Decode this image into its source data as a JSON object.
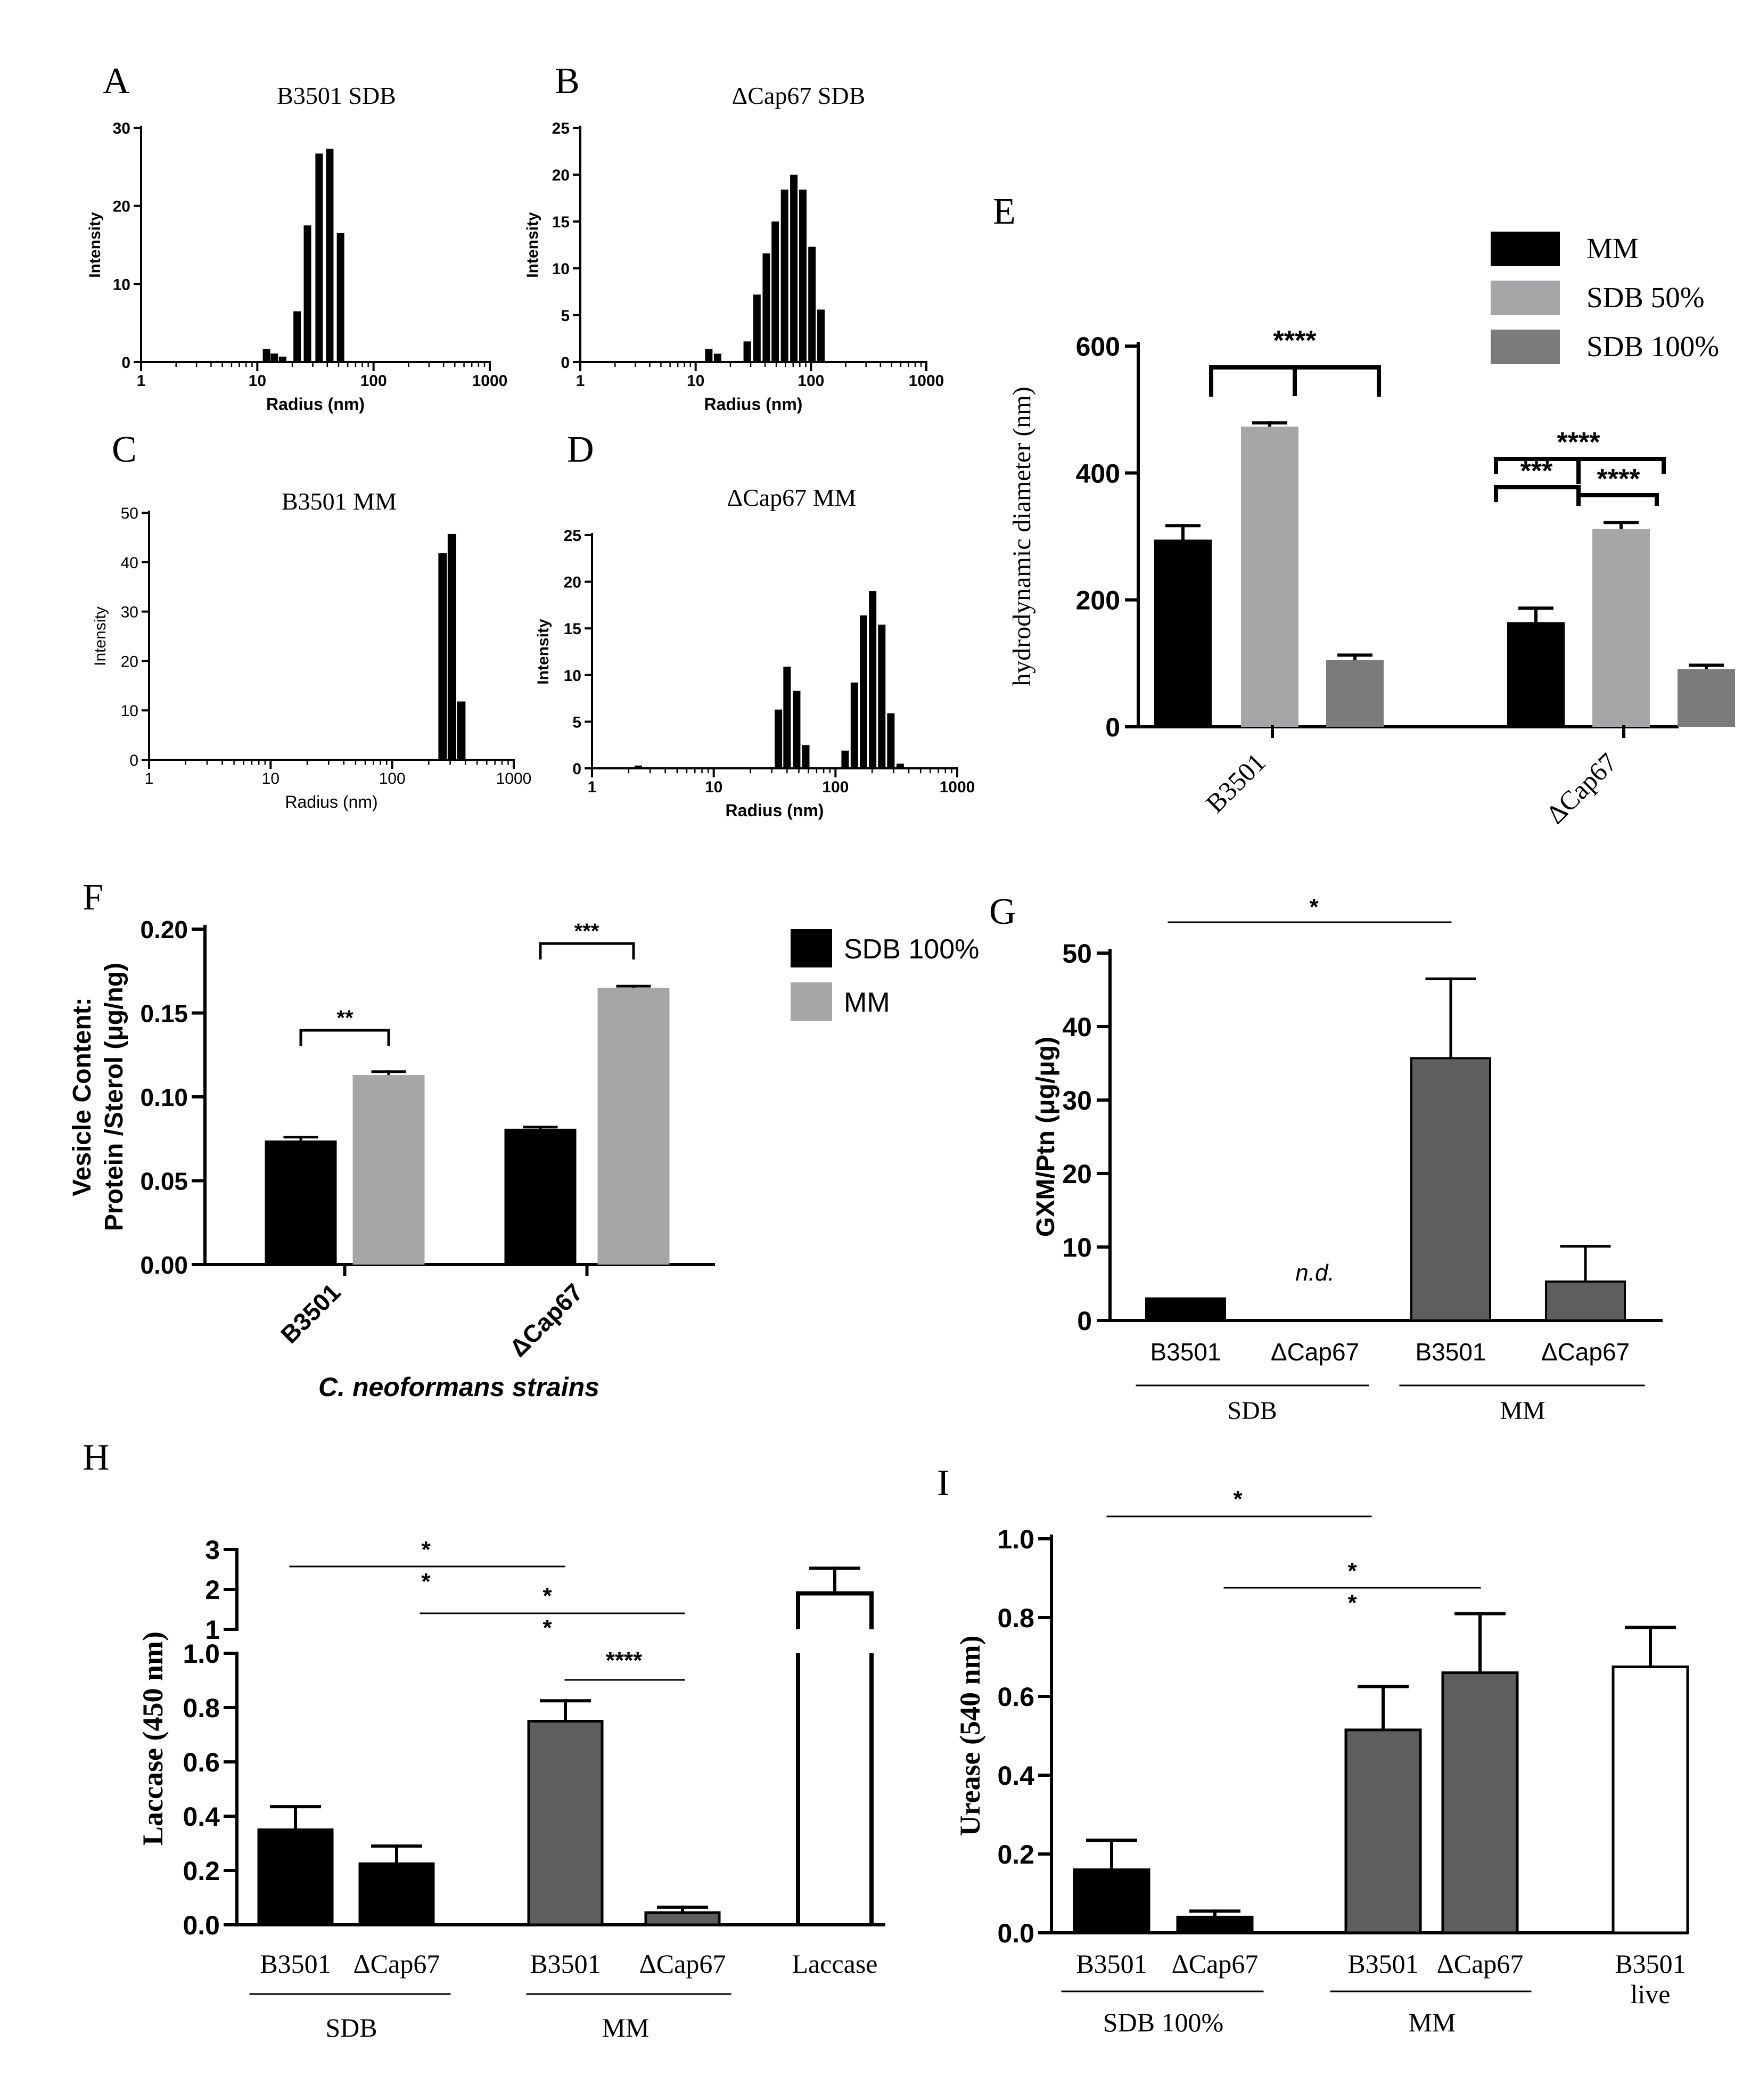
{
  "figure": {
    "panel_letters": [
      "A",
      "B",
      "C",
      "D",
      "E",
      "F",
      "G",
      "H",
      "I"
    ]
  },
  "colors": {
    "black": "#000000",
    "light_grey": "#a6a6a8",
    "dark_grey": "#7b7b7b",
    "mid_grey": "#5e5e5e",
    "white": "#ffffff"
  },
  "chart_data": [
    {
      "panel": "A",
      "type": "bar",
      "title": "B3501 SDB",
      "xlabel": "Radius (nm)",
      "ylabel": "Intensity",
      "xscale": "log",
      "xlim": [
        1,
        1000
      ],
      "ylim": [
        0,
        30
      ],
      "xticks": [
        1,
        10,
        100,
        1000
      ],
      "xtick_labels": [
        "1",
        "10",
        "100",
        "1000"
      ],
      "yticks": [
        0,
        10,
        20,
        30
      ],
      "ytick_labels": [
        "0",
        "10",
        "20",
        "30"
      ],
      "bars": [
        {
          "x": 12,
          "y": 1.7
        },
        {
          "x": 14,
          "y": 1.1
        },
        {
          "x": 16.5,
          "y": 0.7
        },
        {
          "x": 22,
          "y": 6.5
        },
        {
          "x": 27,
          "y": 17.5
        },
        {
          "x": 34,
          "y": 26.7
        },
        {
          "x": 42,
          "y": 27.3
        },
        {
          "x": 52,
          "y": 16.5
        }
      ]
    },
    {
      "panel": "B",
      "type": "bar",
      "title": "ΔCap67 SDB",
      "xlabel": "Radius (nm)",
      "ylabel": "Intensity",
      "xscale": "log",
      "xlim": [
        1,
        1000
      ],
      "ylim": [
        0,
        25
      ],
      "xticks": [
        1,
        10,
        100,
        1000
      ],
      "xtick_labels": [
        "1",
        "10",
        "100",
        "1000"
      ],
      "yticks": [
        0,
        5,
        10,
        15,
        20,
        25
      ],
      "ytick_labels": [
        "0",
        "5",
        "10",
        "15",
        "20",
        "25"
      ],
      "bars": [
        {
          "x": 13,
          "y": 1.4
        },
        {
          "x": 15.5,
          "y": 0.9
        },
        {
          "x": 28,
          "y": 2.2
        },
        {
          "x": 34,
          "y": 7.2
        },
        {
          "x": 41,
          "y": 11.6
        },
        {
          "x": 49,
          "y": 15.0
        },
        {
          "x": 59,
          "y": 18.4
        },
        {
          "x": 71,
          "y": 20.0
        },
        {
          "x": 85,
          "y": 18.4
        },
        {
          "x": 102,
          "y": 12.3
        },
        {
          "x": 122,
          "y": 5.6
        }
      ]
    },
    {
      "panel": "C",
      "type": "bar",
      "title": "B3501 MM",
      "xlabel": "Radius (nm)",
      "ylabel": "Intensity",
      "xscale": "log",
      "xlim": [
        1,
        1000
      ],
      "ylim": [
        0,
        50
      ],
      "xticks": [
        1,
        10,
        100,
        1000
      ],
      "xtick_labels": [
        "1",
        "10",
        "100",
        "1000"
      ],
      "yticks": [
        0,
        10,
        20,
        30,
        40,
        50
      ],
      "ytick_labels": [
        "0",
        "10",
        "20",
        "30",
        "40",
        "50"
      ],
      "bars": [
        {
          "x": 260,
          "y": 41.8
        },
        {
          "x": 310,
          "y": 45.7
        },
        {
          "x": 370,
          "y": 11.8
        }
      ]
    },
    {
      "panel": "D",
      "type": "bar",
      "title": "ΔCap67 MM",
      "xlabel": "Radius (nm)",
      "ylabel": "Intensity",
      "xscale": "log",
      "xlim": [
        1,
        1000
      ],
      "ylim": [
        0,
        25
      ],
      "xticks": [
        1,
        10,
        100,
        1000
      ],
      "xtick_labels": [
        "1",
        "10",
        "100",
        "1000"
      ],
      "yticks": [
        0,
        5,
        10,
        15,
        20,
        25
      ],
      "ytick_labels": [
        "0",
        "5",
        "10",
        "15",
        "20",
        "25"
      ],
      "bars": [
        {
          "x": 2.4,
          "y": 0.3
        },
        {
          "x": 34,
          "y": 6.3
        },
        {
          "x": 40,
          "y": 10.9
        },
        {
          "x": 48,
          "y": 8.3
        },
        {
          "x": 57,
          "y": 2.5
        },
        {
          "x": 120,
          "y": 1.9
        },
        {
          "x": 143,
          "y": 9.2
        },
        {
          "x": 170,
          "y": 16.4
        },
        {
          "x": 202,
          "y": 19.0
        },
        {
          "x": 240,
          "y": 15.4
        },
        {
          "x": 285,
          "y": 5.9
        },
        {
          "x": 340,
          "y": 0.5
        }
      ]
    },
    {
      "panel": "E",
      "type": "bar",
      "title": "",
      "ylabel": "hydrodynamic diameter (nm)",
      "xlabel": "",
      "ylim": [
        0,
        600
      ],
      "yticks": [
        0,
        200,
        400,
        600
      ],
      "ytick_labels": [
        "0",
        "200",
        "400",
        "600"
      ],
      "categories": [
        "B3501",
        "ΔCap67"
      ],
      "series": [
        {
          "name": "MM",
          "color": "#000000",
          "values": [
            295,
            165
          ],
          "errors": [
            22,
            22
          ]
        },
        {
          "name": "SDB 50%",
          "color": "#a6a6a8",
          "values": [
            473,
            312
          ],
          "errors": [
            6,
            10
          ]
        },
        {
          "name": "SDB 100%",
          "color": "#7b7b7b",
          "values": [
            105,
            91
          ],
          "errors": [
            8,
            6
          ]
        }
      ],
      "legend": "top-right",
      "annotations": [
        "****",
        "****",
        "***",
        "****"
      ]
    },
    {
      "panel": "F",
      "type": "bar",
      "title": "",
      "ylabel": "Vesicle Content:",
      "ylabel2": "Protein /Sterol (μg/ng)",
      "xlabel": "C. neoformans strains",
      "ylim": [
        0,
        0.2
      ],
      "yticks": [
        0,
        0.05,
        0.1,
        0.15,
        0.2
      ],
      "ytick_labels": [
        "0.00",
        "0.05",
        "0.10",
        "0.15",
        "0.20"
      ],
      "categories": [
        "B3501",
        "ΔCap67"
      ],
      "series": [
        {
          "name": "SDB 100%",
          "color": "#000000",
          "values": [
            0.074,
            0.081
          ],
          "errors": [
            0.002,
            0.001
          ]
        },
        {
          "name": "MM",
          "color": "#a6a6a8",
          "values": [
            0.113,
            0.165
          ],
          "errors": [
            0.002,
            0.001
          ]
        }
      ],
      "legend": "top-right",
      "annotations": [
        "**",
        "***"
      ]
    },
    {
      "panel": "G",
      "type": "bar",
      "title": "",
      "ylabel": "GXM/Ptn (μg/μg)",
      "xlabel": "",
      "ylim": [
        0,
        50
      ],
      "yticks": [
        0,
        10,
        20,
        30,
        40,
        50
      ],
      "ytick_labels": [
        "0",
        "10",
        "20",
        "30",
        "40",
        "50"
      ],
      "categories": [
        "B3501",
        "ΔCap67",
        "B3501",
        "ΔCap67"
      ],
      "groups": [
        "SDB",
        "MM"
      ],
      "values": [
        3.0,
        0,
        35.7,
        5.3
      ],
      "errors": [
        0,
        0,
        10.8,
        4.8
      ],
      "colors": [
        "#000000",
        "#000000",
        "#5e5e5e",
        "#5e5e5e"
      ],
      "annotations": [
        "*",
        "n.d."
      ]
    },
    {
      "panel": "H",
      "type": "bar",
      "title": "",
      "ylabel": "Laccase (450 nm)",
      "xlabel": "",
      "ylim": [
        0,
        3
      ],
      "axis_break": [
        1,
        1
      ],
      "yticks_lower": [
        0,
        0.2,
        0.4,
        0.6,
        0.8,
        1.0
      ],
      "ytick_labels_lower": [
        "0.0",
        "0.2",
        "0.4",
        "0.6",
        "0.8",
        "1.0"
      ],
      "yticks_upper": [
        1,
        2,
        3
      ],
      "ytick_labels_upper": [
        "1",
        "2",
        "3"
      ],
      "categories": [
        "B3501",
        "ΔCap67",
        "B3501",
        "ΔCap67",
        "Laccase"
      ],
      "groups": [
        "SDB",
        "MM"
      ],
      "values": [
        0.35,
        0.225,
        0.75,
        0.045,
        1.9
      ],
      "errors": [
        0.085,
        0.065,
        0.075,
        0.02,
        0.63
      ],
      "colors": [
        "#000000",
        "#000000",
        "#5e5e5e",
        "#5e5e5e",
        "#ffffff"
      ],
      "annotations": [
        "*",
        "*",
        "*",
        "*",
        "****"
      ]
    },
    {
      "panel": "I",
      "type": "bar",
      "title": "",
      "ylabel": "Urease (540 nm)",
      "xlabel": "",
      "ylim": [
        0,
        1.0
      ],
      "yticks": [
        0,
        0.2,
        0.4,
        0.6,
        0.8,
        1.0
      ],
      "ytick_labels": [
        "0.0",
        "0.2",
        "0.4",
        "0.6",
        "0.8",
        "1.0"
      ],
      "categories": [
        "B3501",
        "ΔCap67",
        "B3501",
        "ΔCap67",
        "B3501"
      ],
      "category_sublabel": [
        "",
        "",
        "",
        "",
        "live"
      ],
      "groups": [
        "SDB 100%",
        "MM"
      ],
      "values": [
        0.16,
        0.04,
        0.515,
        0.66,
        0.675
      ],
      "errors": [
        0.075,
        0.015,
        0.11,
        0.15,
        0.1
      ],
      "colors": [
        "#000000",
        "#000000",
        "#5e5e5e",
        "#5e5e5e",
        "#ffffff"
      ],
      "annotations": [
        "*",
        "*",
        "*"
      ]
    }
  ]
}
